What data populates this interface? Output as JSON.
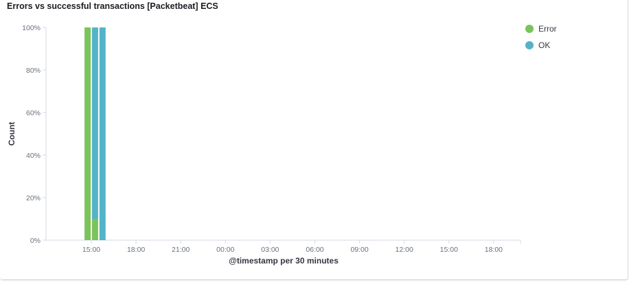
{
  "panel": {
    "title": "Errors vs successful transactions [Packetbeat] ECS"
  },
  "legend": {
    "placement": "top-right",
    "items": [
      {
        "label": "Error",
        "color": "#7bc35a"
      },
      {
        "label": "OK",
        "color": "#54b3c8"
      }
    ]
  },
  "chart_data": {
    "type": "bar",
    "stacked": true,
    "percentage": true,
    "title": "Errors vs successful transactions [Packetbeat] ECS",
    "xlabel": "@timestamp per 30 minutes",
    "ylabel": "Count",
    "ylim": [
      0,
      100
    ],
    "y_ticks": [
      "0%",
      "20%",
      "40%",
      "60%",
      "80%",
      "100%"
    ],
    "x_ticks": [
      "15:00",
      "18:00",
      "21:00",
      "00:00",
      "03:00",
      "06:00",
      "09:00",
      "12:00",
      "15:00",
      "18:00"
    ],
    "categories": [
      "14:30",
      "15:00",
      "15:30"
    ],
    "series": [
      {
        "name": "Error",
        "color": "#7bc35a",
        "values": [
          100,
          10,
          0
        ]
      },
      {
        "name": "OK",
        "color": "#54b3c8",
        "values": [
          0,
          90,
          100
        ]
      }
    ],
    "grid": false
  }
}
